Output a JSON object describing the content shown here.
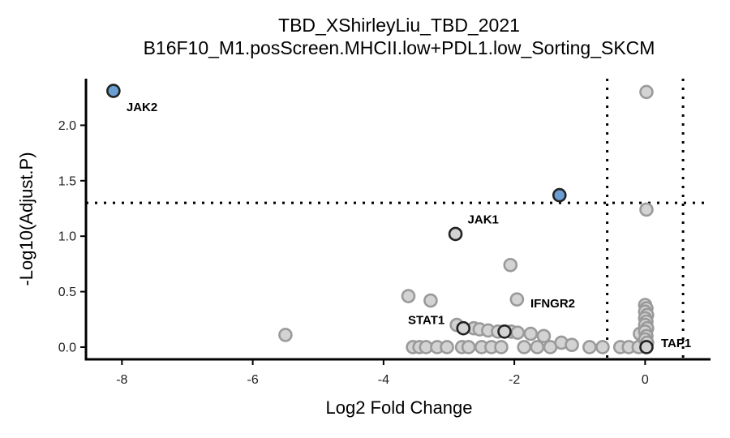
{
  "chart_data": {
    "type": "scatter",
    "title": "TBD_XShirleyLiu_TBD_2021",
    "subtitle": "B16F10_M1.posScreen.MHCII.low+PDL1.low_Sorting_SKCM",
    "xlabel": "Log2 Fold Change",
    "ylabel": "-Log10(Adjust.P)",
    "xlim": [
      -8.55,
      1.0
    ],
    "ylim": [
      -0.11,
      2.42
    ],
    "xticks": [
      -8,
      -6,
      -4,
      -2,
      0
    ],
    "yticks": [
      0.0,
      0.5,
      1.0,
      1.5,
      2.0
    ],
    "xtick_labels": [
      "-8",
      "-6",
      "-4",
      "-2",
      "0"
    ],
    "ytick_labels": [
      "0.0",
      "0.5",
      "1.0",
      "1.5",
      "2.0"
    ],
    "threshold_y": 1.3,
    "threshold_x": [
      -0.58,
      0.58
    ],
    "grid": false,
    "colors": {
      "highlight_fill": "#6a9fd4",
      "highlight_stroke": "#222222",
      "labeled_stroke": "#222222",
      "background_fill": "#d3d3d3",
      "background_stroke": "#9a9a9a"
    },
    "points": [
      {
        "x": -8.13,
        "y": 2.31,
        "kind": "highlight",
        "label": "JAK2"
      },
      {
        "x": -1.31,
        "y": 1.37,
        "kind": "highlight"
      },
      {
        "x": -2.9,
        "y": 1.02,
        "kind": "labeled",
        "label": "JAK1"
      },
      {
        "x": -2.78,
        "y": 0.17,
        "kind": "labeled",
        "label": "STAT1"
      },
      {
        "x": -2.15,
        "y": 0.14,
        "kind": "labeled",
        "label": "IFNGR2"
      },
      {
        "x": 0.02,
        "y": 0.0,
        "kind": "labeled",
        "label": "TAP1"
      },
      {
        "x": 0.02,
        "y": 2.3,
        "kind": "background"
      },
      {
        "x": 0.02,
        "y": 1.24,
        "kind": "background"
      },
      {
        "x": -2.06,
        "y": 0.74,
        "kind": "background"
      },
      {
        "x": -3.62,
        "y": 0.46,
        "kind": "background"
      },
      {
        "x": -3.28,
        "y": 0.42,
        "kind": "background"
      },
      {
        "x": -1.96,
        "y": 0.43,
        "kind": "background"
      },
      {
        "x": -5.5,
        "y": 0.11,
        "kind": "background"
      },
      {
        "x": -2.88,
        "y": 0.2,
        "kind": "background"
      },
      {
        "x": -2.62,
        "y": 0.17,
        "kind": "background"
      },
      {
        "x": -2.53,
        "y": 0.16,
        "kind": "background"
      },
      {
        "x": -2.4,
        "y": 0.15,
        "kind": "background"
      },
      {
        "x": -2.25,
        "y": 0.14,
        "kind": "background"
      },
      {
        "x": -2.05,
        "y": 0.14,
        "kind": "background"
      },
      {
        "x": -1.95,
        "y": 0.13,
        "kind": "background"
      },
      {
        "x": -1.75,
        "y": 0.12,
        "kind": "background"
      },
      {
        "x": -1.55,
        "y": 0.1,
        "kind": "background"
      },
      {
        "x": -3.55,
        "y": 0.0,
        "kind": "background"
      },
      {
        "x": -3.45,
        "y": 0.0,
        "kind": "background"
      },
      {
        "x": -3.35,
        "y": 0.0,
        "kind": "background"
      },
      {
        "x": -3.18,
        "y": 0.0,
        "kind": "background"
      },
      {
        "x": -3.03,
        "y": 0.0,
        "kind": "background"
      },
      {
        "x": -2.8,
        "y": 0.0,
        "kind": "background"
      },
      {
        "x": -2.7,
        "y": 0.0,
        "kind": "background"
      },
      {
        "x": -2.5,
        "y": 0.0,
        "kind": "background"
      },
      {
        "x": -2.35,
        "y": 0.0,
        "kind": "background"
      },
      {
        "x": -2.2,
        "y": 0.0,
        "kind": "background"
      },
      {
        "x": -1.85,
        "y": 0.0,
        "kind": "background"
      },
      {
        "x": -1.65,
        "y": 0.0,
        "kind": "background"
      },
      {
        "x": -1.45,
        "y": 0.0,
        "kind": "background"
      },
      {
        "x": -1.28,
        "y": 0.04,
        "kind": "background"
      },
      {
        "x": -1.12,
        "y": 0.02,
        "kind": "background"
      },
      {
        "x": -0.85,
        "y": 0.0,
        "kind": "background"
      },
      {
        "x": -0.65,
        "y": 0.0,
        "kind": "background"
      },
      {
        "x": -0.38,
        "y": 0.0,
        "kind": "background"
      },
      {
        "x": -0.25,
        "y": 0.0,
        "kind": "background"
      },
      {
        "x": -0.1,
        "y": 0.0,
        "kind": "background"
      },
      {
        "x": -0.08,
        "y": 0.12,
        "kind": "background"
      },
      {
        "x": 0.0,
        "y": 0.38,
        "kind": "background"
      },
      {
        "x": 0.02,
        "y": 0.35,
        "kind": "background"
      },
      {
        "x": 0.0,
        "y": 0.32,
        "kind": "background"
      },
      {
        "x": 0.03,
        "y": 0.29,
        "kind": "background"
      },
      {
        "x": 0.0,
        "y": 0.26,
        "kind": "background"
      },
      {
        "x": 0.02,
        "y": 0.23,
        "kind": "background"
      },
      {
        "x": 0.0,
        "y": 0.2,
        "kind": "background"
      },
      {
        "x": 0.03,
        "y": 0.17,
        "kind": "background"
      },
      {
        "x": 0.0,
        "y": 0.14,
        "kind": "background"
      },
      {
        "x": 0.02,
        "y": 0.1,
        "kind": "background"
      },
      {
        "x": 0.0,
        "y": 0.07,
        "kind": "background"
      },
      {
        "x": 0.03,
        "y": 0.04,
        "kind": "background"
      }
    ]
  }
}
